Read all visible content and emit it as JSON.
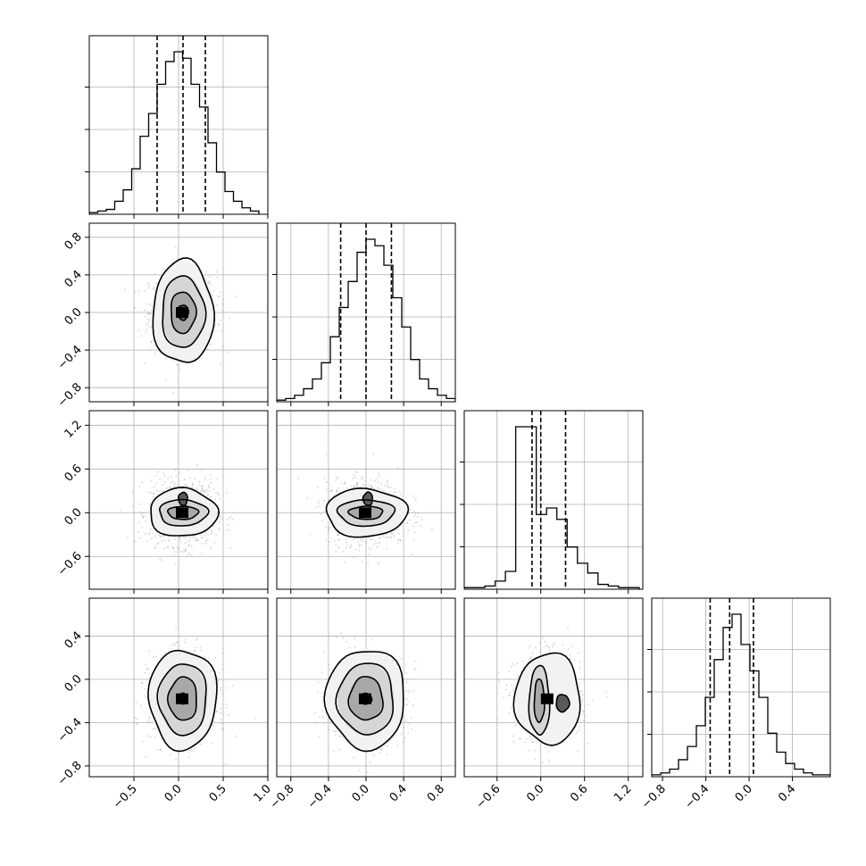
{
  "chart_data": {
    "type": "corner",
    "n_params": 4,
    "colors": {
      "line": "#000000",
      "grid": "#b0b0b0",
      "scatter": "#9a9a9a",
      "density_dark": "#000000"
    },
    "grid": true,
    "params": [
      {
        "range": [
          -1.0,
          1.0
        ],
        "ticks": [
          -0.5,
          0.0,
          0.5,
          1.0
        ],
        "tick_labels": [
          "−0.5",
          "0.0",
          "0.5",
          "1.0"
        ],
        "mean": 0.05,
        "sd": 0.15
      },
      {
        "range": [
          -0.95,
          0.95
        ],
        "ticks": [
          -0.8,
          -0.4,
          0.0,
          0.4,
          0.8
        ],
        "tick_labels": [
          "−0.8",
          "−0.4",
          "0.0",
          "0.4",
          "0.8"
        ],
        "mean": 0.0,
        "sd": 0.17
      },
      {
        "range": [
          -1.05,
          1.4
        ],
        "ticks": [
          -0.6,
          0.0,
          0.6,
          1.2
        ],
        "tick_labels": [
          "−0.6",
          "0.0",
          "0.6",
          "1.2"
        ],
        "mean": 0.0,
        "sd": 0.18
      },
      {
        "range": [
          -0.9,
          0.75
        ],
        "ticks": [
          -0.8,
          -0.4,
          0.0,
          0.4
        ],
        "tick_labels": [
          "−0.8",
          "−0.4",
          "0.0",
          "0.4"
        ],
        "mean": -0.18,
        "sd": 0.16
      }
    ],
    "histograms": [
      {
        "param": 0,
        "bin_edges": [
          -1.0,
          0.9
        ],
        "counts": [
          1,
          2,
          3,
          8,
          15,
          28,
          48,
          62,
          80,
          94,
          100,
          96,
          80,
          66,
          44,
          26,
          14,
          8,
          4,
          2
        ],
        "quantiles": [
          -0.24,
          0.05,
          0.3
        ]
      },
      {
        "param": 1,
        "bin_edges": [
          -0.95,
          0.95
        ],
        "counts": [
          1,
          2,
          4,
          8,
          14,
          24,
          40,
          58,
          74,
          92,
          100,
          96,
          84,
          64,
          46,
          26,
          14,
          8,
          4,
          2
        ],
        "quantiles": [
          -0.27,
          0.0,
          0.27
        ]
      },
      {
        "param": 2,
        "bin_edges": [
          -1.05,
          1.35
        ],
        "counts": [
          1,
          1,
          2,
          5,
          11,
          100,
          100,
          46,
          50,
          43,
          26,
          16,
          10,
          3,
          2,
          1,
          1
        ],
        "quantiles": [
          -0.12,
          0.0,
          0.34
        ]
      },
      {
        "param": 3,
        "bin_edges": [
          -0.9,
          0.75
        ],
        "counts": [
          1,
          2,
          4,
          9,
          16,
          27,
          42,
          62,
          79,
          86,
          70,
          56,
          42,
          23,
          13,
          7,
          4,
          2,
          1,
          1
        ],
        "quantiles": [
          -0.36,
          -0.18,
          0.04
        ]
      }
    ],
    "pairs": [
      {
        "x": 0,
        "y": 1,
        "center": [
          0.05,
          0.0
        ],
        "contours": [
          {
            "rx": 0.34,
            "ry": 0.55
          },
          {
            "rx": 0.24,
            "ry": 0.38
          },
          {
            "rx": 0.14,
            "ry": 0.22
          },
          {
            "rx": 0.06,
            "ry": 0.08
          }
        ]
      },
      {
        "x": 0,
        "y": 2,
        "center": [
          0.05,
          0.0
        ],
        "contours": [
          {
            "rx": 0.38,
            "ry": 0.33
          },
          {
            "rx": 0.27,
            "ry": 0.18
          },
          {
            "rx": 0.17,
            "ry": 0.09
          },
          {
            "rx": 0.05,
            "ry": 0.09,
            "dx": 0.0,
            "dy": 0.19
          }
        ]
      },
      {
        "x": 1,
        "y": 2,
        "center": [
          0.0,
          0.0
        ],
        "contours": [
          {
            "rx": 0.43,
            "ry": 0.33
          },
          {
            "rx": 0.3,
            "ry": 0.18
          },
          {
            "rx": 0.18,
            "ry": 0.09
          },
          {
            "rx": 0.05,
            "ry": 0.09,
            "dx": 0.02,
            "dy": 0.19
          }
        ]
      },
      {
        "x": 0,
        "y": 3,
        "center": [
          0.05,
          -0.18
        ],
        "contours": [
          {
            "rx": 0.38,
            "ry": 0.46
          },
          {
            "rx": 0.27,
            "ry": 0.33
          },
          {
            "rx": 0.16,
            "ry": 0.2
          },
          {
            "rx": 0.05,
            "ry": 0.05
          }
        ]
      },
      {
        "x": 1,
        "y": 3,
        "center": [
          0.0,
          -0.18
        ],
        "contours": [
          {
            "rx": 0.42,
            "ry": 0.46
          },
          {
            "rx": 0.3,
            "ry": 0.33
          },
          {
            "rx": 0.18,
            "ry": 0.2
          },
          {
            "rx": 0.06,
            "ry": 0.05
          }
        ]
      },
      {
        "x": 2,
        "y": 3,
        "center": [
          0.1,
          -0.18
        ],
        "contours": [
          {
            "rx": 0.45,
            "ry": 0.42
          },
          {
            "rx": 0.14,
            "ry": 0.32,
            "dx": -0.12,
            "dy": -0.02
          },
          {
            "rx": 0.07,
            "ry": 0.2,
            "dx": -0.12,
            "dy": -0.02
          },
          {
            "rx": 0.09,
            "ry": 0.08,
            "dx": 0.2,
            "dy": -0.04
          }
        ]
      }
    ]
  }
}
